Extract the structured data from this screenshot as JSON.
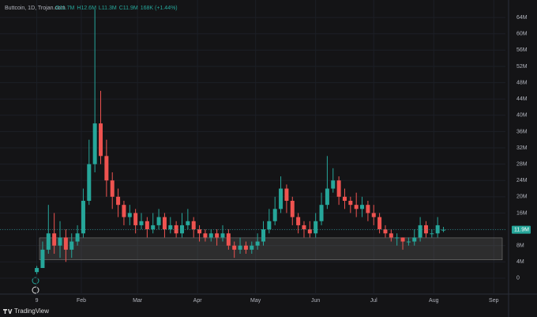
{
  "chart_data": {
    "type": "candlestick",
    "title": "Buttcoin, 1D, Trojan.com",
    "header_values": [
      "O11.7M",
      "H12.6M",
      "L11.3M",
      "C11.9M",
      "168K (+1.44%)"
    ],
    "x": [
      0,
      3,
      6,
      9,
      12,
      15,
      18,
      21,
      24,
      27,
      30,
      33,
      36,
      39,
      42,
      45,
      48,
      51,
      54,
      57,
      60,
      63,
      66,
      69,
      72,
      75,
      78,
      81,
      84,
      87,
      90,
      93,
      96,
      99,
      102,
      105,
      108,
      111,
      114,
      117,
      120,
      123,
      126,
      129,
      132,
      135,
      138,
      141,
      144,
      147,
      150,
      153,
      156,
      159,
      162,
      165,
      168,
      171,
      174,
      177,
      180,
      183,
      186,
      189,
      192,
      195,
      198,
      201,
      204,
      207,
      210
    ],
    "open": [
      1.5,
      2.5,
      7,
      11,
      8,
      10,
      7,
      9,
      11,
      19,
      28,
      38,
      30,
      24,
      20,
      18,
      15,
      16,
      13,
      14,
      12,
      13,
      15,
      12,
      13,
      11,
      13,
      14,
      12,
      11,
      10,
      11,
      10,
      11,
      8,
      7,
      8,
      7,
      8,
      9,
      12,
      14,
      17,
      22,
      19,
      15,
      13,
      12,
      11,
      14,
      18,
      22,
      24,
      20,
      19,
      18,
      17,
      18,
      16,
      15,
      12,
      11,
      10,
      10,
      9,
      9,
      10,
      13,
      11,
      11,
      11.7
    ],
    "high": [
      3,
      9,
      18,
      16,
      14,
      12,
      11,
      13,
      22,
      34,
      66,
      46,
      34,
      26,
      22,
      19,
      18,
      17,
      16,
      15,
      16,
      17,
      16,
      15,
      14,
      16,
      17,
      15,
      13,
      12,
      12,
      12,
      13,
      12,
      9,
      10,
      9,
      9,
      11,
      14,
      17,
      20,
      25,
      23,
      20,
      16,
      14,
      14,
      16,
      21,
      30,
      27,
      25,
      22,
      20,
      21,
      20,
      19,
      18,
      16,
      13,
      12,
      11,
      10,
      10,
      12,
      15,
      14,
      12,
      15,
      12.6
    ],
    "low": [
      1,
      2.5,
      6,
      6,
      5,
      4,
      5,
      8,
      10,
      18,
      26,
      28,
      20,
      17,
      15,
      13,
      13,
      11,
      12,
      10,
      11,
      12,
      10,
      11,
      10,
      10,
      12,
      10,
      9,
      9,
      9,
      8,
      9,
      7,
      5,
      6,
      6,
      6,
      7,
      8,
      11,
      13,
      16,
      16,
      13,
      11,
      10,
      10,
      10,
      13,
      17,
      21,
      18,
      17,
      16,
      15,
      15,
      14,
      13,
      11,
      10,
      9,
      8,
      7,
      8,
      8,
      9,
      10,
      10,
      10,
      11.3
    ],
    "close": [
      2.5,
      7,
      11,
      8,
      10,
      7,
      9,
      11,
      19,
      28,
      38,
      30,
      24,
      20,
      18,
      15,
      16,
      13,
      14,
      12,
      13,
      15,
      12,
      13,
      11,
      13,
      14,
      12,
      11,
      10,
      11,
      10,
      11,
      8,
      7,
      8,
      7,
      8,
      9,
      12,
      14,
      17,
      22,
      19,
      15,
      13,
      12,
      11,
      14,
      18,
      22,
      24,
      20,
      19,
      18,
      17,
      18,
      16,
      15,
      12,
      11,
      10,
      10,
      9,
      9,
      10,
      13,
      11,
      11,
      13,
      11.9
    ],
    "up_color": "#26a69a",
    "down_color": "#ef5350",
    "price_label": "11.9M",
    "zone": [
      4.5,
      9.9
    ],
    "xlim": [
      -19,
      242
    ],
    "xticks": [
      {
        "value": 0,
        "label": "9"
      },
      {
        "value": 23,
        "label": "Feb"
      },
      {
        "value": 52,
        "label": "Mar"
      },
      {
        "value": 83,
        "label": "Apr"
      },
      {
        "value": 113,
        "label": "May"
      },
      {
        "value": 144,
        "label": "Jun"
      },
      {
        "value": 174,
        "label": "Jul"
      },
      {
        "value": 205,
        "label": "Aug"
      },
      {
        "value": 236,
        "label": "Sep"
      }
    ],
    "ylim": [
      -3.9,
      68.3
    ],
    "yticks": [
      0,
      {
        "value": 4,
        "label": "4M"
      },
      {
        "value": 8,
        "label": "8M"
      },
      {
        "value": 12,
        "label": "12M"
      },
      {
        "value": 16,
        "label": "16M"
      },
      {
        "value": 20,
        "label": "20M"
      },
      {
        "value": 24,
        "label": "24M"
      },
      {
        "value": 28,
        "label": "28M"
      },
      {
        "value": 32,
        "label": "32M"
      },
      {
        "value": 36,
        "label": "36M"
      },
      {
        "value": 40,
        "label": "40M"
      },
      {
        "value": 44,
        "label": "44M"
      },
      {
        "value": 48,
        "label": "48M"
      },
      {
        "value": 52,
        "label": "52M"
      },
      {
        "value": 56,
        "label": "56M"
      },
      {
        "value": 60,
        "label": "60M"
      },
      {
        "value": 64,
        "label": "64M"
      }
    ],
    "grid": true,
    "footer": "TradingView"
  }
}
